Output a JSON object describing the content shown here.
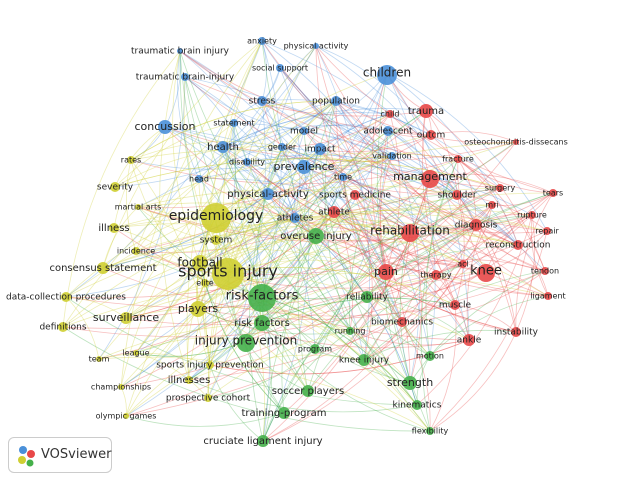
{
  "nodes": [
    {
      "label": "traumatic brain injury",
      "color": "#4a90d9"
    },
    {
      "label": "anxiety",
      "color": "#4a90d9"
    },
    {
      "label": "physical activity",
      "color": "#4a90d9"
    },
    {
      "label": "social support",
      "color": "#4a90d9"
    },
    {
      "label": "traumatic brain-injury",
      "color": "#4a90d9"
    },
    {
      "label": "children",
      "color": "#4a90d9"
    },
    {
      "label": "stress",
      "color": "#4a90d9"
    },
    {
      "label": "population",
      "color": "#4a90d9"
    },
    {
      "label": "statement",
      "color": "#4a90d9"
    },
    {
      "label": "concussion",
      "color": "#4a90d9"
    },
    {
      "label": "model",
      "color": "#4a90d9"
    },
    {
      "label": "adolescent",
      "color": "#4a90d9"
    },
    {
      "label": "gender",
      "color": "#4a90d9"
    },
    {
      "label": "health",
      "color": "#4a90d9"
    },
    {
      "label": "impact",
      "color": "#4a90d9"
    },
    {
      "label": "disability",
      "color": "#4a90d9"
    },
    {
      "label": "prevalence",
      "color": "#4a90d9"
    },
    {
      "label": "head",
      "color": "#4a90d9"
    },
    {
      "label": "time",
      "color": "#4a90d9"
    },
    {
      "label": "physical-activity",
      "color": "#4a90d9"
    },
    {
      "label": "athletes",
      "color": "#4a90d9"
    },
    {
      "label": "validation",
      "color": "#4a90d9"
    },
    {
      "label": "child",
      "color": "#e84848"
    },
    {
      "label": "trauma",
      "color": "#e84848"
    },
    {
      "label": "outcm",
      "color": "#e84848"
    },
    {
      "label": "osteochondritis-dissecans",
      "color": "#e84848"
    },
    {
      "label": "fracture",
      "color": "#e84848"
    },
    {
      "label": "management",
      "color": "#e84848"
    },
    {
      "label": "surgery",
      "color": "#e84848"
    },
    {
      "label": "tears",
      "color": "#e84848"
    },
    {
      "label": "shoulder",
      "color": "#e84848"
    },
    {
      "label": "sports medicine",
      "color": "#e84848"
    },
    {
      "label": "mri",
      "color": "#e84848"
    },
    {
      "label": "rupture",
      "color": "#e84848"
    },
    {
      "label": "athlete",
      "color": "#e84848"
    },
    {
      "label": "diagnosis",
      "color": "#e84848"
    },
    {
      "label": "repair",
      "color": "#e84848"
    },
    {
      "label": "rehabilitation",
      "color": "#e84848"
    },
    {
      "label": "reconstruction",
      "color": "#e84848"
    },
    {
      "label": "acl",
      "color": "#e84848"
    },
    {
      "label": "knee",
      "color": "#e84848"
    },
    {
      "label": "tendon",
      "color": "#e84848"
    },
    {
      "label": "pain",
      "color": "#e84848"
    },
    {
      "label": "therapy",
      "color": "#e84848"
    },
    {
      "label": "ligament",
      "color": "#e84848"
    },
    {
      "label": "muscle",
      "color": "#e84848"
    },
    {
      "label": "instability",
      "color": "#e84848"
    },
    {
      "label": "ankle",
      "color": "#e84848"
    },
    {
      "label": "biomechanics",
      "color": "#e84848"
    },
    {
      "label": "overuse injury",
      "color": "#45b04a"
    },
    {
      "label": "risk-factors",
      "color": "#45b04a"
    },
    {
      "label": "reliability",
      "color": "#45b04a"
    },
    {
      "label": "risk factors",
      "color": "#45b04a"
    },
    {
      "label": "injury prevention",
      "color": "#45b04a"
    },
    {
      "label": "running",
      "color": "#45b04a"
    },
    {
      "label": "program",
      "color": "#45b04a"
    },
    {
      "label": "knee injury",
      "color": "#45b04a"
    },
    {
      "label": "motion",
      "color": "#45b04a"
    },
    {
      "label": "strength",
      "color": "#45b04a"
    },
    {
      "label": "soccer players",
      "color": "#45b04a"
    },
    {
      "label": "kinematics",
      "color": "#45b04a"
    },
    {
      "label": "training-program",
      "color": "#45b04a"
    },
    {
      "label": "flexibility",
      "color": "#45b04a"
    },
    {
      "label": "cruciate ligament injury",
      "color": "#45b04a"
    },
    {
      "label": "sports injury",
      "color": "#cfcf32"
    },
    {
      "label": "rates",
      "color": "#cfcf32"
    },
    {
      "label": "severity",
      "color": "#cfcf32"
    },
    {
      "label": "martial arts",
      "color": "#cfcf32"
    },
    {
      "label": "epidemiology",
      "color": "#cfcf32"
    },
    {
      "label": "illness",
      "color": "#cfcf32"
    },
    {
      "label": "system",
      "color": "#cfcf32"
    },
    {
      "label": "incidence",
      "color": "#cfcf32"
    },
    {
      "label": "football",
      "color": "#cfcf32"
    },
    {
      "label": "consensus statement",
      "color": "#cfcf32"
    },
    {
      "label": "elite",
      "color": "#cfcf32"
    },
    {
      "label": "data-collection procedures",
      "color": "#cfcf32"
    },
    {
      "label": "players",
      "color": "#cfcf32"
    },
    {
      "label": "surveillance",
      "color": "#cfcf32"
    },
    {
      "label": "definitions",
      "color": "#cfcf32"
    },
    {
      "label": "league",
      "color": "#cfcf32"
    },
    {
      "label": "team",
      "color": "#cfcf32"
    },
    {
      "label": "sports injury prevention",
      "color": "#cfcf32"
    },
    {
      "label": "illnesses",
      "color": "#cfcf32"
    },
    {
      "label": "championships",
      "color": "#cfcf32"
    },
    {
      "label": "prospective cohort",
      "color": "#cfcf32"
    },
    {
      "label": "olympic games",
      "color": "#cfcf32"
    }
  ],
  "logo": "VOSviewer"
}
